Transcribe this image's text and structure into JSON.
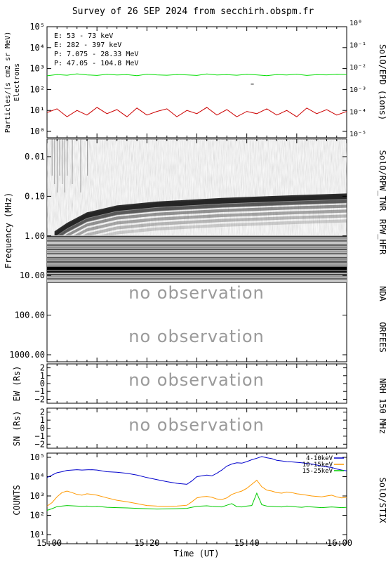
{
  "title": "Survey of 26 SEP 2024 from secchirh.obspm.fr",
  "no_observation_text": "no observation",
  "x_axis": {
    "label": "Time (UT)",
    "range": [
      "15:00",
      "16:00"
    ],
    "ticks": [
      "15:00",
      "15:20",
      "15:40",
      "16:00"
    ]
  },
  "colors": {
    "e_low": "#00dd00",
    "e_high": "#cc0000",
    "p_low": "#000000",
    "p_high": "#0000cc",
    "stix_low": "#0000cc",
    "stix_mid": "#ff9900",
    "stix_high": "#00cc00",
    "noobs": "#9a9a9a"
  },
  "chart_data": [
    {
      "panel": "epd",
      "type": "line",
      "right_label": "SolO/EPD (ions)",
      "ylabel": "Particles/(s cm2 sr MeV)",
      "ylabel2": "Electrons",
      "y_scale": "log",
      "ylim": [
        0.5,
        100000
      ],
      "y_ticks": [
        "10⁰",
        "10¹",
        "10²",
        "10³",
        "10⁴",
        "10⁵"
      ],
      "y_right_ticks": [
        "10⁻⁵",
        "10⁻⁴",
        "10⁻³",
        "10⁻²",
        "10⁻¹",
        "10⁰"
      ],
      "legend": [
        {
          "name": "E: 53 - 73 keV",
          "color_key": "e_low"
        },
        {
          "name": "E: 282 - 397 keV",
          "color_key": "e_high"
        },
        {
          "name": "P: 7.075 - 28.33 MeV",
          "color_key": "p_low"
        },
        {
          "name": "P: 47.05 - 104.8 MeV",
          "color_key": "p_high"
        }
      ],
      "series": [
        {
          "name": "E: 53 - 73 keV",
          "color_key": "e_low",
          "x": [
            0,
            2,
            4,
            6,
            8,
            10,
            12,
            14,
            16,
            18,
            20,
            22,
            24,
            26,
            28,
            30,
            32,
            34,
            36,
            38,
            40,
            42,
            44,
            46,
            48,
            50,
            52,
            54,
            56,
            58,
            60
          ],
          "y": [
            450,
            520,
            480,
            560,
            500,
            470,
            530,
            490,
            510,
            460,
            540,
            500,
            480,
            520,
            500,
            470,
            550,
            490,
            510,
            480,
            530,
            500,
            460,
            520,
            490,
            540,
            470,
            510,
            500,
            530,
            520
          ]
        },
        {
          "name": "E: 282 - 397 keV",
          "color_key": "e_high",
          "x": [
            0,
            2,
            4,
            6,
            8,
            10,
            12,
            14,
            16,
            18,
            20,
            22,
            24,
            26,
            28,
            30,
            32,
            34,
            36,
            38,
            40,
            42,
            44,
            46,
            48,
            50,
            52,
            54,
            56,
            58,
            60
          ],
          "y": [
            8,
            12,
            5,
            10,
            6,
            14,
            7,
            11,
            5,
            13,
            6,
            9,
            12,
            5,
            10,
            7,
            14,
            6,
            11,
            5,
            9,
            7,
            12,
            6,
            10,
            5,
            13,
            7,
            11,
            6,
            9
          ]
        },
        {
          "name": "P: 7.075 - 28.33 MeV",
          "color_key": "p_low",
          "x": [
            40.8,
            41.4
          ],
          "y": [
            180,
            180
          ]
        }
      ]
    },
    {
      "panel": "radio",
      "type": "heatmap",
      "right_labels": [
        "SolO/RPW_TNR",
        "RPW_HFR",
        "NDA",
        "ORFEES"
      ],
      "ylabel": "Frequency (MHz)",
      "y_scale": "log",
      "y_ticks": [
        "0.01",
        "0.10",
        "1.00",
        "10.00",
        "100.00",
        "1000.00"
      ],
      "burst_drift": [
        {
          "t": 1.5,
          "f": 0.9
        },
        {
          "t": 4,
          "f": 0.55
        },
        {
          "t": 8,
          "f": 0.3
        },
        {
          "t": 14,
          "f": 0.2
        },
        {
          "t": 22,
          "f": 0.16
        },
        {
          "t": 35,
          "f": 0.13
        },
        {
          "t": 50,
          "f": 0.11
        },
        {
          "t": 60,
          "f": 0.1
        }
      ]
    },
    {
      "panel": "nrh_ew",
      "type": "line",
      "right_label": "NRH 150 MHz",
      "ylabel": "EW (Rs)",
      "ylim": [
        -2.5,
        2.5
      ],
      "y_ticks": [
        "2",
        "1",
        "0",
        "−1",
        "−2"
      ]
    },
    {
      "panel": "nrh_sn",
      "type": "line",
      "ylabel": "SN (Rs)",
      "ylim": [
        -2.5,
        2.5
      ],
      "y_ticks": [
        "2",
        "1",
        "0",
        "−1",
        "−2"
      ]
    },
    {
      "panel": "stix",
      "type": "line",
      "right_label": "SolO/STIX",
      "ylabel": "COUNTS",
      "y_scale": "log",
      "ylim": [
        10,
        100000
      ],
      "y_ticks": [
        "10⁵",
        "10⁴",
        "10³",
        "10²",
        "10¹"
      ],
      "legend": [
        {
          "name": "4-10keV",
          "color_key": "stix_low"
        },
        {
          "name": "10-15keV",
          "color_key": "stix_mid"
        },
        {
          "name": "15-25keV",
          "color_key": "stix_high"
        }
      ],
      "series": [
        {
          "name": "4-10keV",
          "color_key": "stix_low",
          "x": [
            0,
            1,
            2,
            3,
            4,
            5,
            6,
            7,
            8,
            9,
            10,
            12,
            14,
            16,
            18,
            20,
            22,
            24,
            26,
            28,
            29,
            30,
            31,
            32,
            33,
            34,
            35,
            36,
            37,
            38,
            39,
            40,
            41,
            42,
            43,
            44,
            45,
            46,
            47,
            48,
            49,
            50,
            51,
            52,
            53,
            54,
            55,
            56,
            57,
            58,
            59,
            60
          ],
          "y": [
            9000,
            12000,
            16000,
            18000,
            21000,
            22000,
            23000,
            22000,
            22500,
            23000,
            22000,
            18000,
            17000,
            15000,
            12000,
            9000,
            7000,
            5500,
            4500,
            4000,
            6000,
            10000,
            11000,
            12000,
            11000,
            15000,
            22000,
            35000,
            45000,
            52000,
            50000,
            60000,
            75000,
            90000,
            110000,
            95000,
            85000,
            70000,
            65000,
            60000,
            58000,
            55000,
            52000,
            48000,
            45000,
            40000,
            35000,
            32000,
            30000,
            25000,
            22000,
            20000
          ]
        },
        {
          "name": "10-15keV",
          "color_key": "stix_mid",
          "x": [
            0,
            1,
            2,
            3,
            4,
            5,
            6,
            7,
            8,
            9,
            10,
            12,
            14,
            16,
            18,
            20,
            22,
            24,
            26,
            28,
            29,
            30,
            31,
            32,
            33,
            34,
            35,
            36,
            37,
            38,
            39,
            40,
            41,
            42,
            43,
            44,
            45,
            46,
            47,
            48,
            49,
            50,
            51,
            52,
            53,
            54,
            55,
            56,
            57,
            58,
            59,
            60
          ],
          "y": [
            300,
            450,
            900,
            1500,
            1800,
            1500,
            1200,
            1100,
            1300,
            1200,
            1100,
            800,
            600,
            500,
            400,
            320,
            300,
            290,
            300,
            330,
            500,
            800,
            900,
            950,
            850,
            700,
            650,
            800,
            1200,
            1500,
            1800,
            2500,
            4000,
            6500,
            3000,
            2000,
            1800,
            1500,
            1400,
            1600,
            1500,
            1300,
            1200,
            1100,
            1000,
            950,
            900,
            1000,
            1100,
            900,
            800,
            850
          ]
        },
        {
          "name": "15-25keV",
          "color_key": "stix_high",
          "x": [
            0,
            1,
            2,
            3,
            4,
            5,
            6,
            7,
            8,
            9,
            10,
            12,
            14,
            16,
            18,
            20,
            22,
            24,
            26,
            28,
            29,
            30,
            31,
            32,
            33,
            34,
            35,
            36,
            37,
            38,
            39,
            40,
            41,
            42,
            43,
            44,
            45,
            46,
            47,
            48,
            49,
            50,
            51,
            52,
            53,
            54,
            55,
            56,
            57,
            58,
            59,
            60
          ],
          "y": [
            180,
            220,
            280,
            300,
            320,
            310,
            300,
            290,
            300,
            280,
            290,
            260,
            250,
            240,
            230,
            220,
            210,
            215,
            220,
            230,
            260,
            290,
            300,
            310,
            290,
            280,
            270,
            330,
            400,
            280,
            270,
            300,
            320,
            1400,
            350,
            300,
            290,
            280,
            270,
            300,
            290,
            270,
            260,
            280,
            270,
            260,
            250,
            260,
            270,
            260,
            250,
            260
          ]
        }
      ]
    }
  ]
}
